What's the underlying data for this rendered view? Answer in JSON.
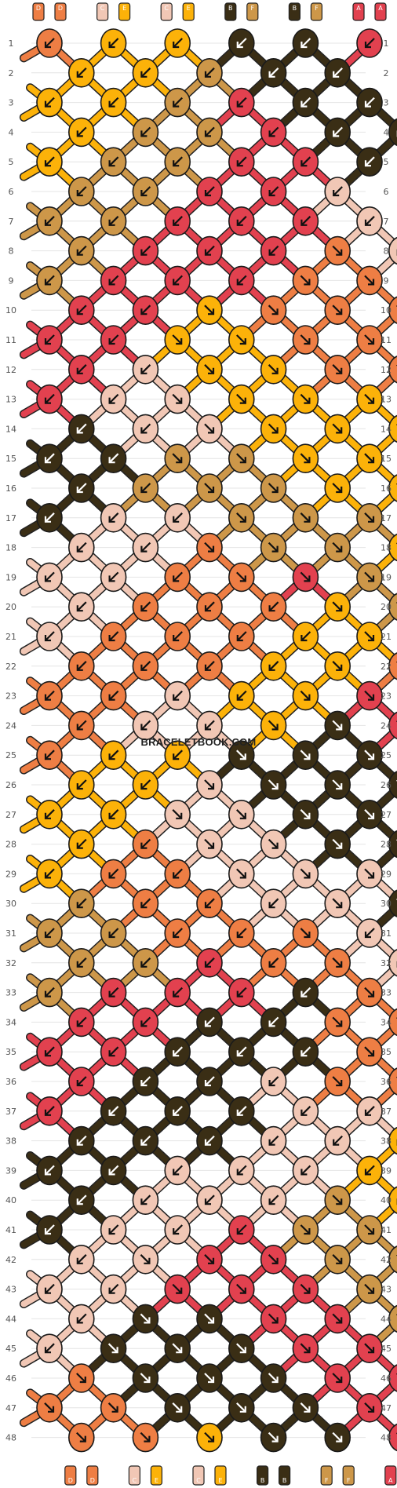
{
  "watermark": "BRACELETBOOK.COM",
  "colors": {
    "A": "#e2414f",
    "B": "#3a2e15",
    "C": "#f1c7b5",
    "D": "#ee7e44",
    "E": "#fcb209",
    "F": "#cd9749"
  },
  "top_strings": [
    "D",
    "D",
    "C",
    "E",
    "C",
    "E",
    "B",
    "F",
    "B",
    "F",
    "A",
    "A"
  ],
  "bottom_strings": [
    "D",
    "D",
    "C",
    "E",
    "C",
    "E",
    "B",
    "B",
    "F",
    "F",
    "A",
    "A"
  ],
  "row_numbers": [
    "1",
    "2",
    "3",
    "4",
    "5",
    "6",
    "7",
    "8",
    "9",
    "10",
    "11",
    "12",
    "13",
    "14",
    "15",
    "16",
    "17",
    "18",
    "19",
    "20",
    "21",
    "22",
    "23",
    "24",
    "25",
    "26",
    "27",
    "28",
    "29",
    "30",
    "31",
    "32",
    "33",
    "34",
    "35",
    "36",
    "37",
    "38",
    "39",
    "40",
    "41",
    "42",
    "43",
    "44",
    "45",
    "46",
    "47",
    "48"
  ],
  "knots": [
    "DEEBBA",
    "EEFBB",
    "EEFABB",
    "EFFABB",
    "EFFAAB",
    "FFAAC",
    "FFAAACC",
    "FAAADC",
    "FAAADDC",
    "AAEDDD",
    "AAEEDDD",
    "ACEEDD",
    "ACCEEEA",
    "BCCEEE",
    "BBFFEEE",
    "BFFFEE",
    "BCCFFFE",
    "CCDFFE",
    "CCDDAFF",
    "CDDDEF",
    "CDDDEEF",
    "DDDEED",
    "DDCEEAA",
    "DCCEBA",
    "DEEBBBA",
    "EECBBB",
    "EECCBBB",
    "EDCCBB",
    "EDDCCCB",
    "FDDCCB",
    "FFDDDCC",
    "FFADDC",
    "FAAABDC",
    "AABBDD",
    "AABBBDD",
    "ABBCDD",
    "ABBBCCA",
    "BBBCCE",
    "BBCCCEE",
    "BCCCFE",
    "BCCAFFE",
    "CCAAFF",
    "CCAAAFF",
    "CBBAAF",
    "CBBBAAF",
    "DBBBAA",
    "DDBBBAA",
    "DDEBBA"
  ],
  "dirs": [
    "LLLLLL",
    "LLLLL",
    "LLLLLL",
    "LLLLLL",
    "LLLLLL",
    "LLLLL",
    "LLLLLLL",
    "LLLLRL",
    "LLLLRRL",
    "LLRRRR",
    "LLRRRRR",
    "LLRRRR",
    "LLRRRRL",
    "LLRRRR",
    "LLRRRRR",
    "LLRRRR",
    "LLLRRRR",
    "LLRRRR",
    "LLLRRRR",
    "LLLLRR",
    "LLLLLRR",
    "LLLLRR",
    "LLLLRRR",
    "LLLRRR",
    "LLLRRRR",
    "LLRRRR",
    "LLRRRRR",
    "LLRRRR",
    "LLLRRRR",
    "LLLLRR",
    "LLLLRLL",
    "LLLLRL",
    "LLLLLRL",
    "LLLLRR",
    "LLLLLRR",
    "LLLLRR",
    "LLLLLLR",
    "LLLLLL",
    "LLLLLLL",
    "LLLLRL",
    "LLLLRRL",
    "LRRRRR",
    "LLRRRRR",
    "LRRRRR",
    "LRRRRRR",
    "RRRRRR",
    "RRRRRRR",
    "RRRRRR"
  ]
}
